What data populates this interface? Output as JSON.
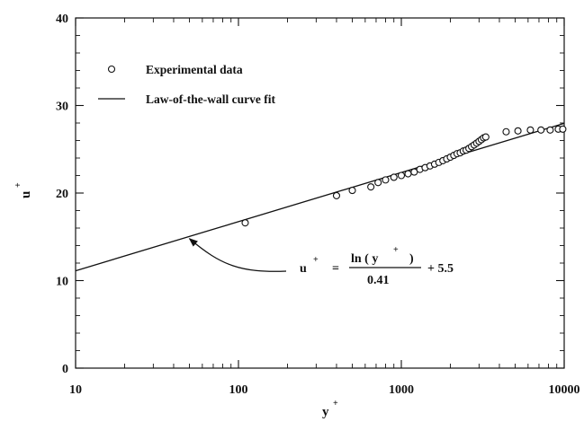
{
  "chart_data": {
    "type": "scatter",
    "xscale": "log",
    "xlim": [
      10,
      10000
    ],
    "ylim": [
      0,
      40
    ],
    "xticks": [
      {
        "value": 10,
        "label": "10"
      },
      {
        "value": 100,
        "label": "100"
      },
      {
        "value": 1000,
        "label": "1000"
      },
      {
        "value": 10000,
        "label": "10000"
      }
    ],
    "yticks": [
      {
        "value": 0,
        "label": "0"
      },
      {
        "value": 10,
        "label": "10"
      },
      {
        "value": 20,
        "label": "20"
      },
      {
        "value": 30,
        "label": "30"
      },
      {
        "value": 40,
        "label": "40"
      }
    ],
    "xlabel": {
      "base": "y",
      "sup": "+"
    },
    "ylabel": {
      "base": "u",
      "sup": "+"
    },
    "grid": false,
    "legend_position": "top-left",
    "series": [
      {
        "name": "Experimental data",
        "kind": "markers",
        "marker": "open-circle",
        "points": [
          [
            110,
            16.6
          ],
          [
            400,
            19.7
          ],
          [
            500,
            20.3
          ],
          [
            650,
            20.7
          ],
          [
            720,
            21.2
          ],
          [
            800,
            21.5
          ],
          [
            900,
            21.8
          ],
          [
            1000,
            22.0
          ],
          [
            1100,
            22.2
          ],
          [
            1200,
            22.4
          ],
          [
            1300,
            22.7
          ],
          [
            1400,
            22.9
          ],
          [
            1500,
            23.1
          ],
          [
            1600,
            23.3
          ],
          [
            1700,
            23.5
          ],
          [
            1800,
            23.7
          ],
          [
            1900,
            23.9
          ],
          [
            2000,
            24.1
          ],
          [
            2100,
            24.3
          ],
          [
            2200,
            24.5
          ],
          [
            2300,
            24.6
          ],
          [
            2400,
            24.8
          ],
          [
            2500,
            24.9
          ],
          [
            2600,
            25.1
          ],
          [
            2700,
            25.3
          ],
          [
            2800,
            25.5
          ],
          [
            2900,
            25.7
          ],
          [
            3000,
            25.9
          ],
          [
            3100,
            26.1
          ],
          [
            3200,
            26.3
          ],
          [
            3300,
            26.4
          ],
          [
            4400,
            27.0
          ],
          [
            5200,
            27.1
          ],
          [
            6200,
            27.2
          ],
          [
            7200,
            27.2
          ],
          [
            8200,
            27.2
          ],
          [
            9200,
            27.3
          ],
          [
            9800,
            27.3
          ]
        ]
      },
      {
        "name": "Law-of-the-wall curve fit",
        "kind": "line",
        "equation": {
          "kappa": 0.41,
          "B": 5.5
        },
        "x_range": [
          10,
          10000
        ]
      }
    ],
    "annotation": {
      "lhs_base": "u",
      "lhs_sup": "+",
      "eq_sign": "=",
      "numerator": "ln ( y",
      "numerator_sup": "+",
      "numerator_close": ")",
      "denominator": "0.41",
      "plus_term": "+ 5.5",
      "arrow_target": [
        50,
        15.0
      ]
    }
  }
}
